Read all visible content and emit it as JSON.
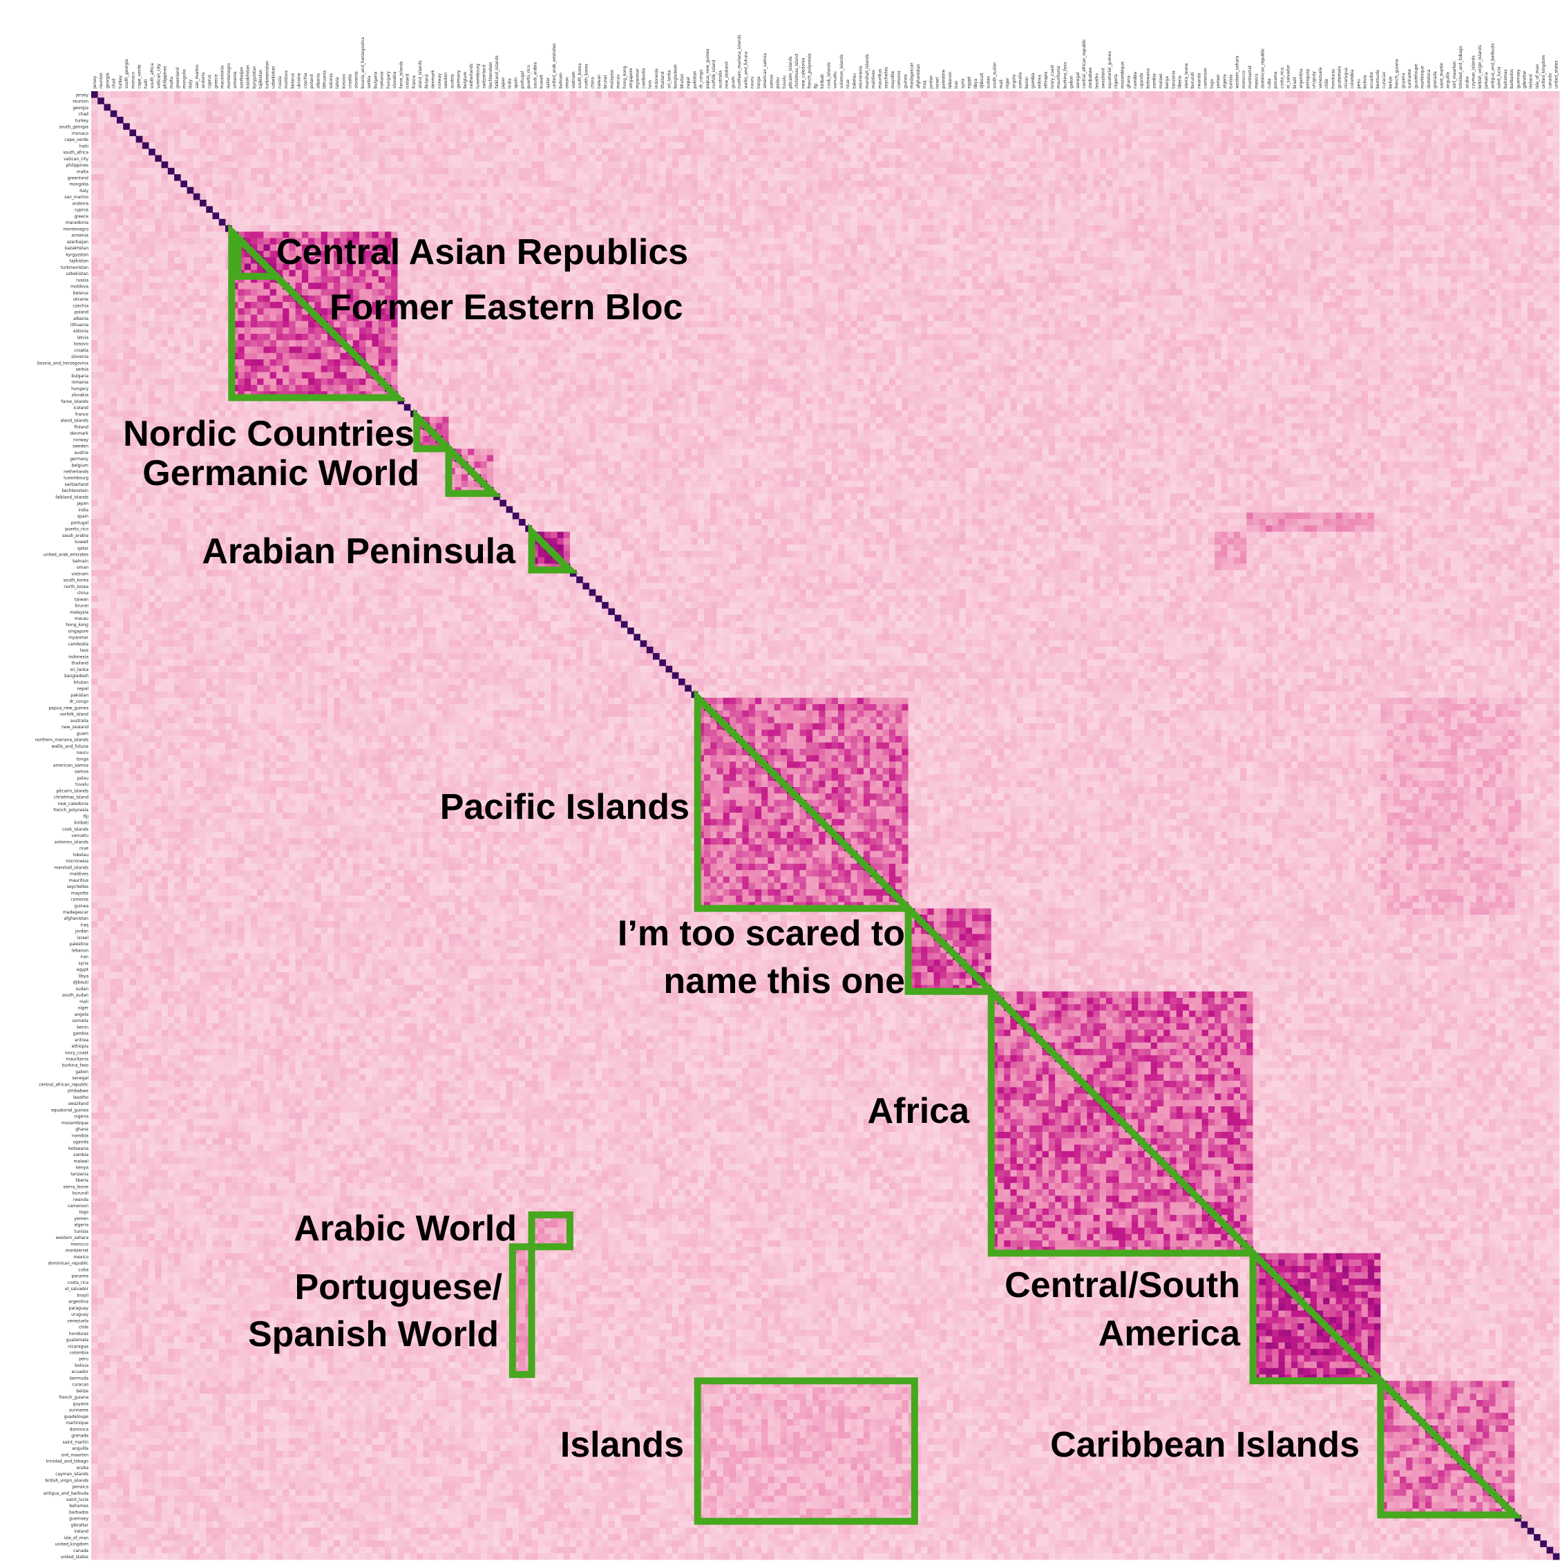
{
  "chart_data": {
    "type": "heatmap",
    "title": "",
    "xlabel": "",
    "ylabel": "",
    "colormap": "RdPu",
    "colors": {
      "low": "#fde6ec",
      "mid": "#ec88b4",
      "high": "#7a0177",
      "diagonal": "#3a0a5e",
      "annotation_stroke": "#46a81e",
      "annotation_text": "#000000"
    },
    "labels": [
      "jersey",
      "reunion",
      "georgia",
      "chad",
      "turkey",
      "south_georgia",
      "monaco",
      "cape_verde",
      "haiti",
      "south_africa",
      "vatican_city",
      "philippines",
      "malta",
      "greenland",
      "mongolia",
      "italy",
      "san_marino",
      "andorra",
      "cyprus",
      "greece",
      "macedonia",
      "montenegro",
      "armenia",
      "azerbaijan",
      "kazakhstan",
      "kyrgyzstan",
      "tajikistan",
      "turkmenistan",
      "uzbekistan",
      "russia",
      "moldova",
      "belarus",
      "ukraine",
      "czechia",
      "poland",
      "albania",
      "lithuania",
      "estonia",
      "latvia",
      "kosovo",
      "croatia",
      "slovenia",
      "bosnia_and_herzegovina",
      "serbia",
      "bulgaria",
      "romania",
      "hungary",
      "slovakia",
      "faroe_islands",
      "iceland",
      "france",
      "aland_islands",
      "finland",
      "denmark",
      "norway",
      "sweden",
      "austria",
      "germany",
      "belgium",
      "netherlands",
      "luxembourg",
      "switzerland",
      "liechtenstein",
      "falkland_islands",
      "japan",
      "india",
      "spain",
      "portugal",
      "puerto_rico",
      "saudi_arabia",
      "kuwait",
      "qatar",
      "united_arab_emirates",
      "bahrain",
      "oman",
      "vietnam",
      "south_korea",
      "north_korea",
      "china",
      "taiwan",
      "brunei",
      "malaysia",
      "macau",
      "hong_kong",
      "singapore",
      "myanmar",
      "cambodia",
      "laos",
      "indonesia",
      "thailand",
      "sri_lanka",
      "bangladesh",
      "bhutan",
      "nepal",
      "pakistan",
      "dr_congo",
      "papua_new_guinea",
      "norfolk_island",
      "australia",
      "new_zealand",
      "guam",
      "northern_mariana_islands",
      "wallis_and_futuna",
      "nauru",
      "tonga",
      "american_samoa",
      "samoa",
      "palau",
      "tuvalu",
      "pitcairn_islands",
      "christmas_island",
      "new_caledonia",
      "french_polynesia",
      "fiji",
      "kiribati",
      "cook_islands",
      "vanuatu",
      "solomon_islands",
      "niue",
      "tokelau",
      "micronesia",
      "marshall_islands",
      "maldives",
      "mauritius",
      "seychelles",
      "mayotte",
      "comoros",
      "guinea",
      "madagascar",
      "afghanistan",
      "iraq",
      "jordan",
      "israel",
      "palestine",
      "lebanon",
      "iran",
      "syria",
      "egypt",
      "libya",
      "djibouti",
      "sudan",
      "south_sudan",
      "mali",
      "niger",
      "angola",
      "somalia",
      "benin",
      "gambia",
      "eritrea",
      "ethiopia",
      "ivory_coast",
      "mauritania",
      "burkina_faso",
      "gabon",
      "senegal",
      "central_african_republic",
      "zimbabwe",
      "lesotho",
      "swaziland",
      "equatorial_guinea",
      "nigeria",
      "mozambique",
      "ghana",
      "namibia",
      "uganda",
      "botswana",
      "zambia",
      "malawi",
      "kenya",
      "tanzania",
      "liberia",
      "sierra_leone",
      "burundi",
      "rwanda",
      "cameroon",
      "togo",
      "yemen",
      "algeria",
      "tunisia",
      "western_sahara",
      "morocco",
      "montserrat",
      "mexico",
      "dominican_republic",
      "cuba",
      "panama",
      "costa_rica",
      "el_salvador",
      "brazil",
      "argentina",
      "paraguay",
      "uruguay",
      "venezuela",
      "chile",
      "honduras",
      "guatemala",
      "nicaragua",
      "colombia",
      "peru",
      "bolivia",
      "ecuador",
      "bermuda",
      "curacao",
      "belize",
      "french_guiana",
      "guyana",
      "suriname",
      "guadeloupe",
      "martinique",
      "dominica",
      "grenada",
      "saint_martin",
      "anguilla",
      "sint_maarten",
      "trinidad_and_tobago",
      "aruba",
      "cayman_islands",
      "british_virgin_islands",
      "jamaica",
      "antigua_and_barbuda",
      "saint_lucia",
      "bahamas",
      "barbados",
      "guernsey",
      "gibraltar",
      "ireland",
      "isle_of_man",
      "united_kingdom",
      "canada",
      "united_states"
    ],
    "value_range": [
      0,
      1
    ],
    "diagonal_value": 1,
    "clusters": [
      {
        "name": "Central Asian Republics",
        "start": "azerbaijan",
        "end": "uzbekistan",
        "shape": "triangle",
        "level": 0.8
      },
      {
        "name": "Former Eastern Bloc",
        "start": "armenia",
        "end": "slovakia",
        "shape": "triangle",
        "level": 0.7
      },
      {
        "name": "Nordic Countries",
        "start": "aland_islands",
        "end": "sweden",
        "shape": "triangle",
        "level": 0.68
      },
      {
        "name": "Germanic World",
        "start": "austria",
        "end": "liechtenstein",
        "shape": "triangle",
        "level": 0.6
      },
      {
        "name": "Arabian Peninsula",
        "start": "saudi_arabia",
        "end": "oman",
        "shape": "triangle",
        "level": 0.78
      },
      {
        "name": "Pacific Islands",
        "start": "dr_congo",
        "end": "guinea",
        "shape": "triangle",
        "level": 0.66
      },
      {
        "name": "I’m too scared to name this one",
        "start": "madagascar",
        "end": "sudan",
        "shape": "triangle",
        "level": 0.7
      },
      {
        "name": "Africa",
        "start": "south_sudan",
        "end": "montserrat",
        "shape": "triangle",
        "level": 0.68
      },
      {
        "name": "Central/South America",
        "start": "mexico",
        "end": "bermuda",
        "shape": "triangle",
        "level": 0.78
      },
      {
        "name": "Caribbean Islands",
        "start": "curacao",
        "end": "barbados",
        "shape": "triangle",
        "level": 0.62
      },
      {
        "name": "Arabic World",
        "rows_start": "yemen",
        "rows_end": "morocco",
        "cols_start": "saudi_arabia",
        "cols_end": "oman",
        "shape": "rectangle",
        "level": 0.5
      },
      {
        "name": "Portuguese/ Spanish World",
        "rows_start": "montserrat",
        "rows_end": "ecuador",
        "cols_start": "spain",
        "cols_end": "puerto_rico",
        "shape": "rectangle",
        "level": 0.55
      },
      {
        "name": "Islands",
        "rows_start": "curacao",
        "rows_end": "guernsey",
        "cols_start": "dr_congo",
        "cols_end": "madagascar",
        "shape": "rectangle",
        "level": 0.42
      }
    ],
    "annotations": [
      {
        "text": "Central Asian Republics",
        "anchor": "start"
      },
      {
        "text": "Former Eastern Bloc",
        "anchor": "start"
      },
      {
        "text": "Nordic Countries",
        "anchor": "end"
      },
      {
        "text": "Germanic World",
        "anchor": "end"
      },
      {
        "text": "Arabian Peninsula",
        "anchor": "end"
      },
      {
        "text": "Pacific Islands",
        "anchor": "end"
      },
      {
        "text": "I’m too scared to",
        "anchor": "end"
      },
      {
        "text": "name this one",
        "anchor": "end"
      },
      {
        "text": "Africa",
        "anchor": "end"
      },
      {
        "text": "Arabic World",
        "anchor": "end"
      },
      {
        "text": "Portuguese/",
        "anchor": "end"
      },
      {
        "text": "Spanish World",
        "anchor": "end"
      },
      {
        "text": "Central/South",
        "anchor": "end"
      },
      {
        "text": "America",
        "anchor": "end"
      },
      {
        "text": "Islands",
        "anchor": "end"
      },
      {
        "text": "Caribbean Islands",
        "anchor": "end"
      }
    ]
  }
}
